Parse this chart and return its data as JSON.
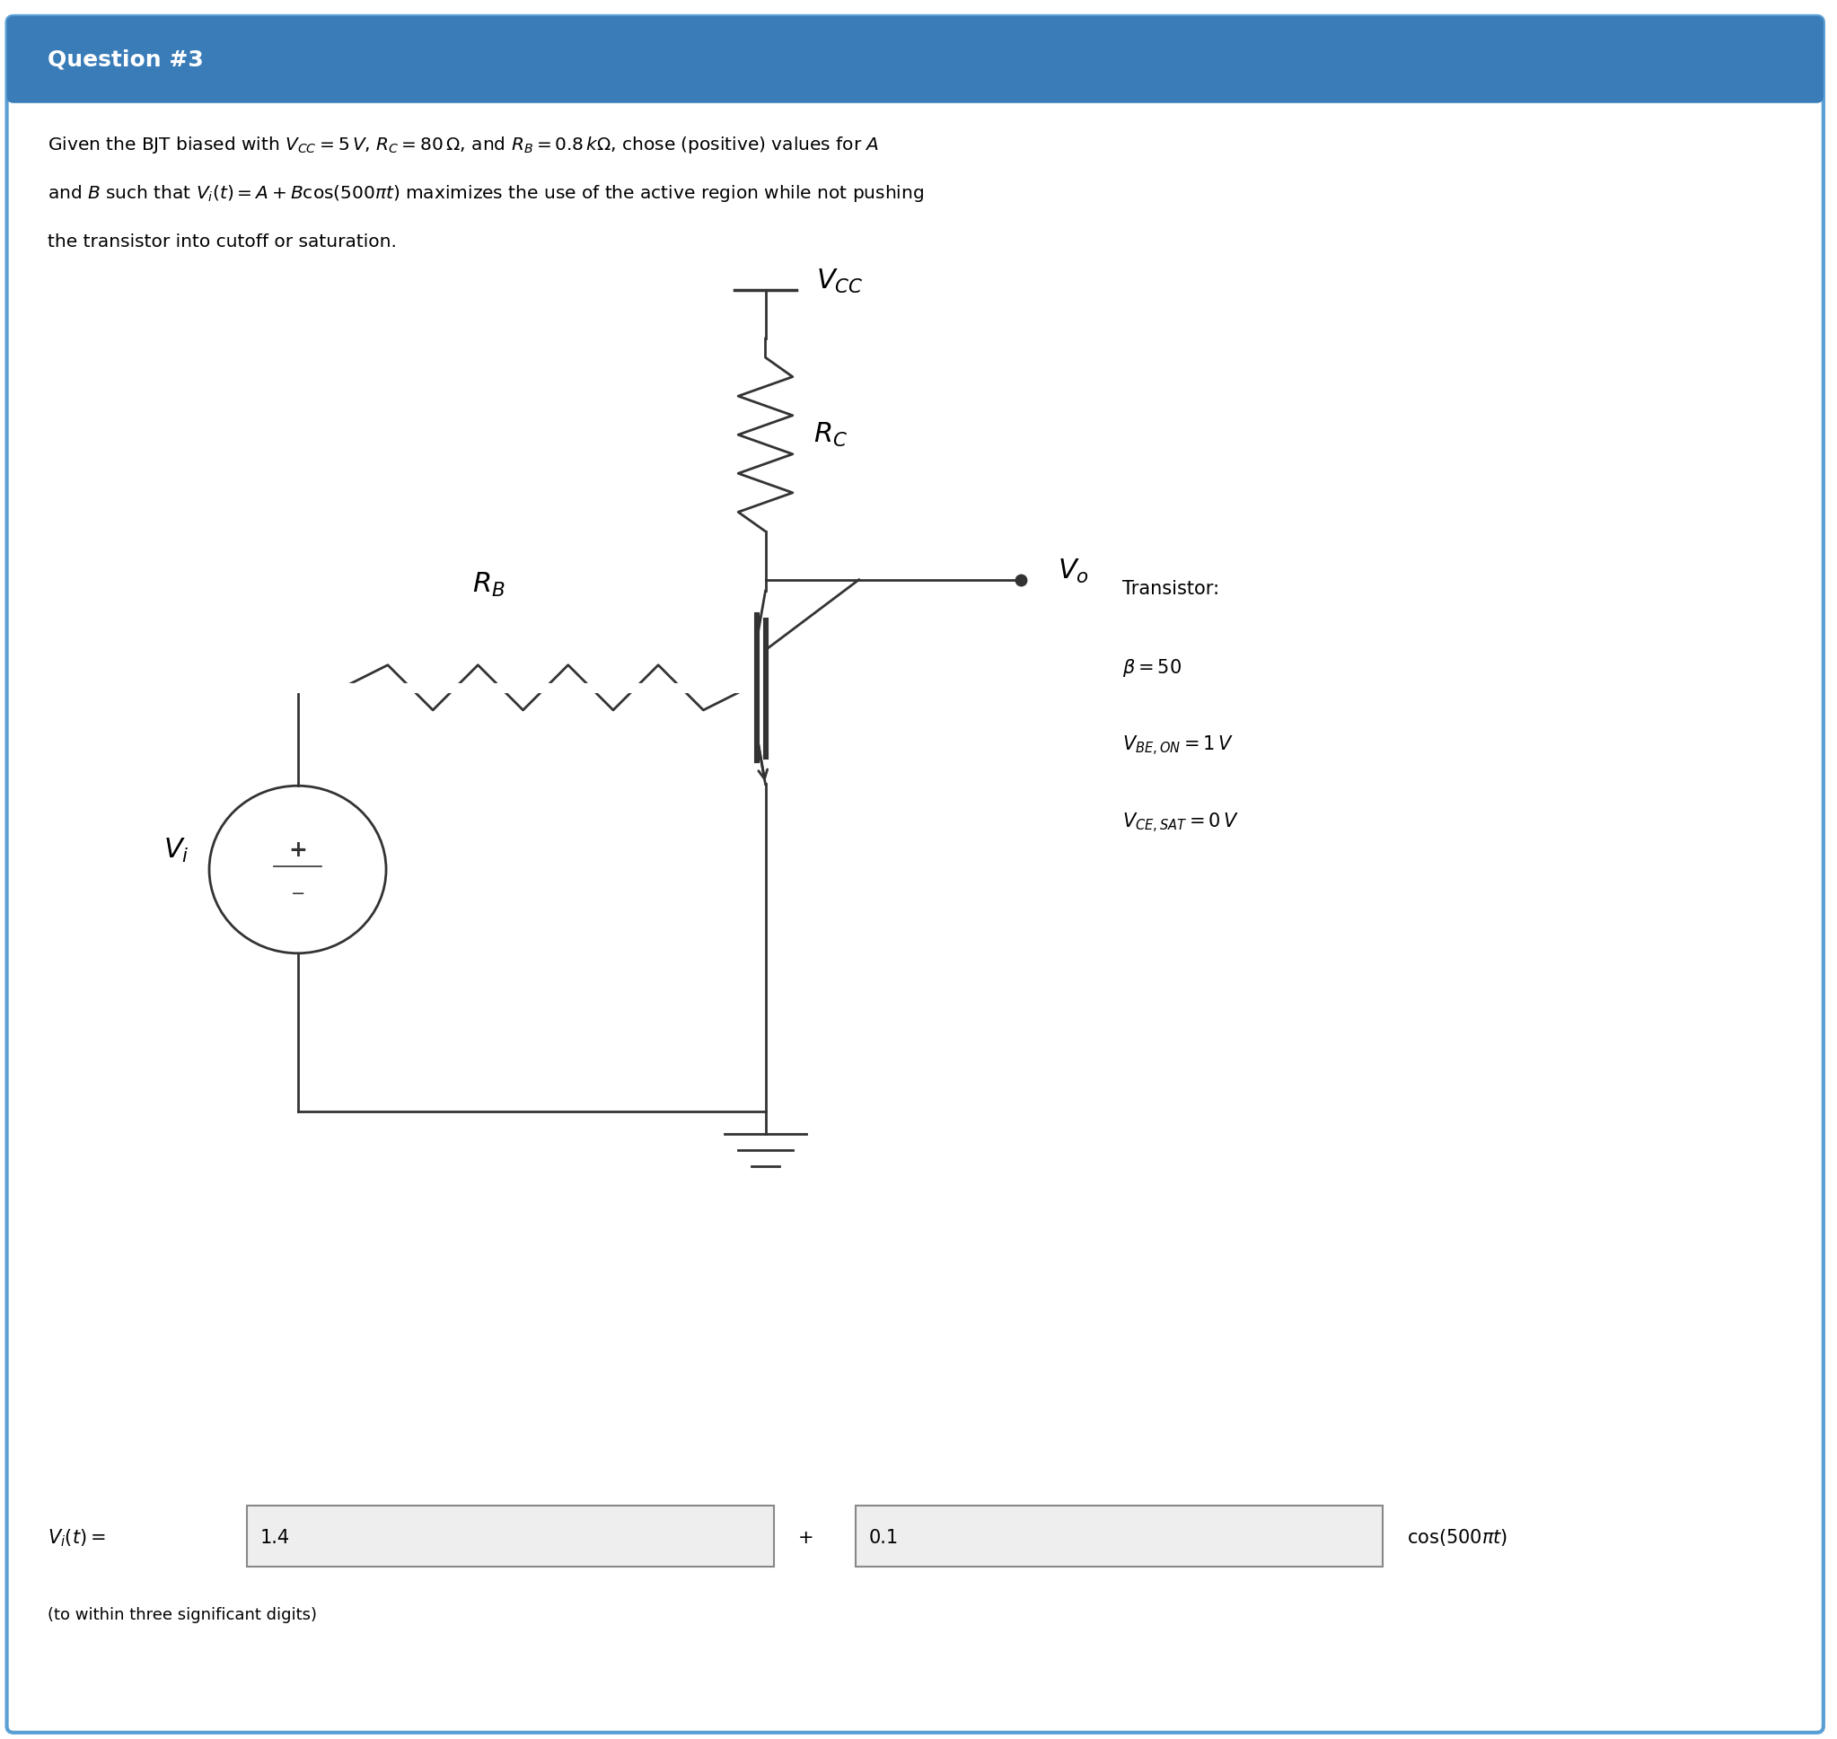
{
  "header_text": "Question #3",
  "header_bg_color": "#3a7cb8",
  "header_text_color": "#ffffff",
  "body_bg_color": "#ffffff",
  "border_color": "#5a9fd4",
  "circuit_color": "#333333",
  "lw": 2.0,
  "answer_A": "1.4",
  "answer_B": "0.1"
}
